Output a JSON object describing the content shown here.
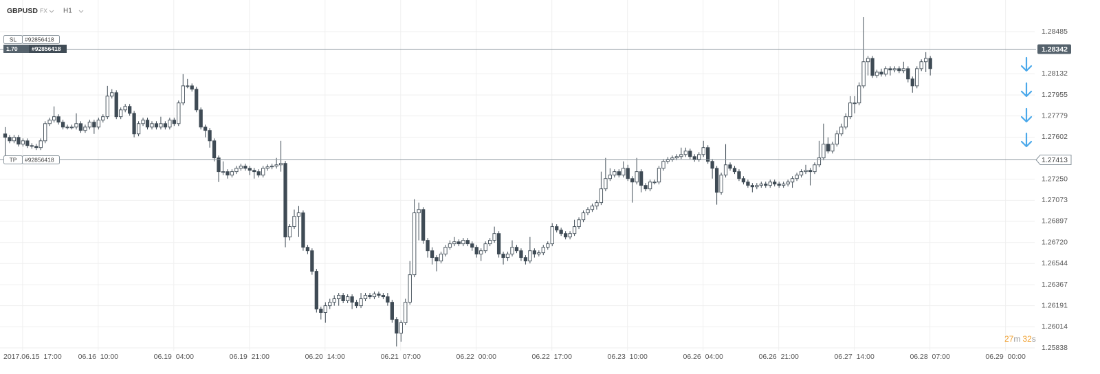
{
  "header": {
    "symbol": "GBPUSD",
    "market": "FX",
    "timeframe": "H1"
  },
  "position": {
    "size": "1.70",
    "id": "#92856418"
  },
  "timer": {
    "minutes": "27",
    "minutes_unit": "m",
    "seconds": "32",
    "seconds_unit": "s"
  },
  "chart_data": {
    "type": "candlestick",
    "up_color": "#ffffff",
    "down_color": "#3f4b55",
    "grid": true,
    "xlim": [
      -1.08,
      231.55
    ],
    "xticks": [
      {
        "value": 4,
        "label": "2017.06.15  17:00"
      },
      {
        "value": 21,
        "label": "06.16  10:00"
      },
      {
        "value": 38,
        "label": "06.19  04:00"
      },
      {
        "value": 55,
        "label": "06.19  21:00"
      },
      {
        "value": 72,
        "label": "06.20  14:00"
      },
      {
        "value": 89,
        "label": "06.21  07:00"
      },
      {
        "value": 106,
        "label": "06.22  00:00"
      },
      {
        "value": 123,
        "label": "06.22  17:00"
      },
      {
        "value": 140,
        "label": "06.23  10:00"
      },
      {
        "value": 157,
        "label": "06.26  04:00"
      },
      {
        "value": 174,
        "label": "06.26  21:00"
      },
      {
        "value": 191,
        "label": "06.27  14:00"
      },
      {
        "value": 208,
        "label": "06.28  07:00"
      },
      {
        "value": 225,
        "label": "06.29  00:00"
      }
    ],
    "ylim": [
      1.25815,
      1.28623
    ],
    "yticks": [
      1.28485,
      1.28132,
      1.27955,
      1.27779,
      1.27602,
      {
        "value": 1.2725,
        "label": "1.27250"
      },
      1.27073,
      1.26897,
      {
        "value": 1.2672,
        "label": "1.26720"
      },
      1.26544,
      1.26367,
      1.26191,
      1.26014,
      1.25838
    ],
    "levels": [
      {
        "label": "SL",
        "id": "#92856418",
        "value": 1.28342
      },
      {
        "label": "TP",
        "id": "#92856418",
        "value": 1.27413
      }
    ],
    "candles": [
      [
        1.27629,
        1.27686,
        1.27428,
        1.276
      ],
      [
        1.276,
        1.2762,
        1.27551,
        1.27571
      ],
      [
        1.27571,
        1.2762,
        1.27551,
        1.276
      ],
      [
        1.276,
        1.2762,
        1.27523,
        1.27543
      ],
      [
        1.27543,
        1.27591,
        1.27523,
        1.27571
      ],
      [
        1.27571,
        1.27591,
        1.27511,
        1.27531
      ],
      [
        1.27531,
        1.27551,
        1.27505,
        1.27525
      ],
      [
        1.27525,
        1.27545,
        1.27494,
        1.27514
      ],
      [
        1.27514,
        1.27591,
        1.27494,
        1.27571
      ],
      [
        1.27571,
        1.27735,
        1.27551,
        1.27715
      ],
      [
        1.27715,
        1.27764,
        1.27695,
        1.27744
      ],
      [
        1.27744,
        1.27859,
        1.27724,
        1.27773
      ],
      [
        1.27773,
        1.27793,
        1.27707,
        1.27727
      ],
      [
        1.27727,
        1.27747,
        1.27666,
        1.27686
      ],
      [
        1.27686,
        1.27706,
        1.27666,
        1.27686
      ],
      [
        1.27686,
        1.27706,
        1.27666,
        1.27686
      ],
      [
        1.27686,
        1.27801,
        1.27666,
        1.27715
      ],
      [
        1.27715,
        1.27735,
        1.27638,
        1.27658
      ],
      [
        1.27658,
        1.27706,
        1.27638,
        1.27686
      ],
      [
        1.27686,
        1.27747,
        1.27666,
        1.27727
      ],
      [
        1.27727,
        1.27747,
        1.27629,
        1.27686
      ],
      [
        1.27686,
        1.27764,
        1.27666,
        1.27744
      ],
      [
        1.27744,
        1.27793,
        1.27724,
        1.27773
      ],
      [
        1.27773,
        1.28031,
        1.27753,
        1.27945
      ],
      [
        1.27945,
        1.28003,
        1.27925,
        1.27974
      ],
      [
        1.27974,
        1.27994,
        1.27753,
        1.27773
      ],
      [
        1.27773,
        1.2785,
        1.27753,
        1.2783
      ],
      [
        1.2783,
        1.27879,
        1.2781,
        1.27859
      ],
      [
        1.27859,
        1.27879,
        1.27781,
        1.27801
      ],
      [
        1.27801,
        1.27821,
        1.276,
        1.27629
      ],
      [
        1.27629,
        1.27735,
        1.27609,
        1.27715
      ],
      [
        1.27715,
        1.27764,
        1.27695,
        1.27744
      ],
      [
        1.27744,
        1.27764,
        1.27666,
        1.27686
      ],
      [
        1.27686,
        1.27735,
        1.27666,
        1.27715
      ],
      [
        1.27715,
        1.27735,
        1.27666,
        1.27686
      ],
      [
        1.27686,
        1.27773,
        1.27666,
        1.27715
      ],
      [
        1.27715,
        1.27735,
        1.27666,
        1.27686
      ],
      [
        1.27686,
        1.27764,
        1.27666,
        1.27744
      ],
      [
        1.27744,
        1.27764,
        1.27695,
        1.27715
      ],
      [
        1.27715,
        1.27908,
        1.27695,
        1.27888
      ],
      [
        1.27888,
        1.28129,
        1.27868,
        1.28031
      ],
      [
        1.28031,
        1.28089,
        1.28011,
        1.28031
      ],
      [
        1.28031,
        1.28051,
        1.27983,
        1.28003
      ],
      [
        1.28003,
        1.28023,
        1.2781,
        1.2783
      ],
      [
        1.2783,
        1.2785,
        1.27666,
        1.27686
      ],
      [
        1.27686,
        1.27706,
        1.276,
        1.27658
      ],
      [
        1.27658,
        1.27678,
        1.27514,
        1.27571
      ],
      [
        1.27571,
        1.27591,
        1.27399,
        1.27428
      ],
      [
        1.27428,
        1.27448,
        1.27226,
        1.27313
      ],
      [
        1.27313,
        1.27399,
        1.27284,
        1.27313
      ],
      [
        1.27313,
        1.27333,
        1.27255,
        1.27284
      ],
      [
        1.27284,
        1.27333,
        1.27264,
        1.27313
      ],
      [
        1.27313,
        1.27361,
        1.27293,
        1.27341
      ],
      [
        1.27341,
        1.27379,
        1.27321,
        1.27359
      ],
      [
        1.27359,
        1.27379,
        1.27321,
        1.27341
      ],
      [
        1.27341,
        1.27361,
        1.27284,
        1.27324
      ],
      [
        1.27324,
        1.27344,
        1.27255,
        1.27313
      ],
      [
        1.27313,
        1.27333,
        1.27264,
        1.27284
      ],
      [
        1.27284,
        1.27361,
        1.27264,
        1.27341
      ],
      [
        1.27341,
        1.27373,
        1.27321,
        1.27353
      ],
      [
        1.27353,
        1.27379,
        1.27333,
        1.27359
      ],
      [
        1.27359,
        1.27428,
        1.27339,
        1.2737
      ],
      [
        1.2737,
        1.27571,
        1.27313,
        1.27382
      ],
      [
        1.27382,
        1.27402,
        1.2668,
        1.26766
      ],
      [
        1.26766,
        1.26873,
        1.26738,
        1.26853
      ],
      [
        1.26853,
        1.26996,
        1.26833,
        1.26939
      ],
      [
        1.26939,
        1.27025,
        1.26766,
        1.26968
      ],
      [
        1.26968,
        1.26988,
        1.26651,
        1.2668
      ],
      [
        1.2668,
        1.267,
        1.26623,
        1.26651
      ],
      [
        1.26651,
        1.26671,
        1.2645,
        1.26479
      ],
      [
        1.26479,
        1.26499,
        1.26134,
        1.26163
      ],
      [
        1.26163,
        1.26183,
        1.26076,
        1.26134
      ],
      [
        1.26134,
        1.2622,
        1.26048,
        1.26191
      ],
      [
        1.26191,
        1.26249,
        1.26163,
        1.2622
      ],
      [
        1.2622,
        1.26278,
        1.26191,
        1.26249
      ],
      [
        1.26249,
        1.26298,
        1.26191,
        1.26278
      ],
      [
        1.26278,
        1.26298,
        1.26212,
        1.26232
      ],
      [
        1.26232,
        1.26286,
        1.26212,
        1.26266
      ],
      [
        1.26266,
        1.26286,
        1.26163,
        1.2622
      ],
      [
        1.2622,
        1.2624,
        1.26171,
        1.26191
      ],
      [
        1.26191,
        1.26298,
        1.26171,
        1.26249
      ],
      [
        1.26249,
        1.26298,
        1.26229,
        1.26278
      ],
      [
        1.26278,
        1.26298,
        1.26246,
        1.26266
      ],
      [
        1.26266,
        1.26309,
        1.26246,
        1.26289
      ],
      [
        1.26289,
        1.26309,
        1.26258,
        1.26278
      ],
      [
        1.26278,
        1.26298,
        1.26246,
        1.26266
      ],
      [
        1.26266,
        1.26298,
        1.26191,
        1.2622
      ],
      [
        1.2622,
        1.2624,
        1.26048,
        1.26076
      ],
      [
        1.26076,
        1.26096,
        1.2585,
        1.25961
      ],
      [
        1.25961,
        1.26068,
        1.2589,
        1.26048
      ],
      [
        1.26048,
        1.26249,
        1.26028,
        1.2622
      ],
      [
        1.2622,
        1.26565,
        1.262,
        1.2645
      ],
      [
        1.2645,
        1.27082,
        1.2643,
        1.26968
      ],
      [
        1.26968,
        1.27054,
        1.26738,
        1.26996
      ],
      [
        1.26996,
        1.27016,
        1.26709,
        1.26738
      ],
      [
        1.26738,
        1.26758,
        1.26594,
        1.26651
      ],
      [
        1.26651,
        1.2668,
        1.26536,
        1.26594
      ],
      [
        1.26594,
        1.26614,
        1.26479,
        1.26565
      ],
      [
        1.26565,
        1.26643,
        1.26545,
        1.26623
      ],
      [
        1.26623,
        1.267,
        1.26603,
        1.2668
      ],
      [
        1.2668,
        1.26738,
        1.2666,
        1.26709
      ],
      [
        1.26709,
        1.26766,
        1.26689,
        1.26726
      ],
      [
        1.26726,
        1.26746,
        1.26689,
        1.26709
      ],
      [
        1.26709,
        1.26758,
        1.26689,
        1.26738
      ],
      [
        1.26738,
        1.26758,
        1.26689,
        1.26709
      ],
      [
        1.26709,
        1.26729,
        1.26651,
        1.2668
      ],
      [
        1.2668,
        1.267,
        1.26594,
        1.26623
      ],
      [
        1.26623,
        1.26671,
        1.26565,
        1.26651
      ],
      [
        1.26651,
        1.26729,
        1.26631,
        1.26709
      ],
      [
        1.26709,
        1.26758,
        1.26689,
        1.26738
      ],
      [
        1.26738,
        1.26853,
        1.26718,
        1.26795
      ],
      [
        1.26795,
        1.26815,
        1.26594,
        1.26623
      ],
      [
        1.26623,
        1.26643,
        1.26536,
        1.26594
      ],
      [
        1.26594,
        1.26643,
        1.26565,
        1.26623
      ],
      [
        1.26623,
        1.26738,
        1.26603,
        1.2668
      ],
      [
        1.2668,
        1.267,
        1.26631,
        1.26651
      ],
      [
        1.26651,
        1.26671,
        1.26565,
        1.26594
      ],
      [
        1.26594,
        1.26614,
        1.26536,
        1.26565
      ],
      [
        1.26565,
        1.26766,
        1.26545,
        1.26651
      ],
      [
        1.26651,
        1.26671,
        1.26594,
        1.26623
      ],
      [
        1.26623,
        1.26654,
        1.26603,
        1.26634
      ],
      [
        1.26634,
        1.267,
        1.26614,
        1.2668
      ],
      [
        1.2668,
        1.26729,
        1.2666,
        1.26709
      ],
      [
        1.26709,
        1.26882,
        1.26689,
        1.26853
      ],
      [
        1.26853,
        1.26873,
        1.26804,
        1.26824
      ],
      [
        1.26824,
        1.26844,
        1.26775,
        1.26795
      ],
      [
        1.26795,
        1.26815,
        1.26746,
        1.26766
      ],
      [
        1.26766,
        1.26815,
        1.26746,
        1.26795
      ],
      [
        1.26795,
        1.2691,
        1.26775,
        1.26853
      ],
      [
        1.26853,
        1.2693,
        1.26833,
        1.2691
      ],
      [
        1.2691,
        1.26988,
        1.2689,
        1.26968
      ],
      [
        1.26968,
        1.27016,
        1.26948,
        1.26996
      ],
      [
        1.26996,
        1.27045,
        1.26976,
        1.27025
      ],
      [
        1.27025,
        1.27074,
        1.26996,
        1.27054
      ],
      [
        1.27054,
        1.27313,
        1.27034,
        1.27169
      ],
      [
        1.27169,
        1.27428,
        1.27149,
        1.27255
      ],
      [
        1.27255,
        1.27341,
        1.27235,
        1.27284
      ],
      [
        1.27284,
        1.27333,
        1.27264,
        1.27313
      ],
      [
        1.27313,
        1.27333,
        1.27264,
        1.27284
      ],
      [
        1.27284,
        1.27399,
        1.27264,
        1.27341
      ],
      [
        1.27341,
        1.2737,
        1.27235,
        1.27255
      ],
      [
        1.27255,
        1.27275,
        1.27054,
        1.27226
      ],
      [
        1.27226,
        1.27428,
        1.27206,
        1.27313
      ],
      [
        1.27313,
        1.27333,
        1.2714,
        1.27198
      ],
      [
        1.27198,
        1.27218,
        1.27149,
        1.27169
      ],
      [
        1.27169,
        1.27246,
        1.27149,
        1.27226
      ],
      [
        1.27226,
        1.27246,
        1.27206,
        1.27226
      ],
      [
        1.27226,
        1.27361,
        1.27206,
        1.27341
      ],
      [
        1.27341,
        1.27419,
        1.27321,
        1.27399
      ],
      [
        1.27399,
        1.27436,
        1.27379,
        1.27416
      ],
      [
        1.27416,
        1.27448,
        1.27396,
        1.27428
      ],
      [
        1.27428,
        1.27459,
        1.27408,
        1.27439
      ],
      [
        1.27439,
        1.27514,
        1.27419,
        1.27456
      ],
      [
        1.27456,
        1.27514,
        1.27436,
        1.27485
      ],
      [
        1.27485,
        1.27505,
        1.27419,
        1.27439
      ],
      [
        1.27439,
        1.27459,
        1.27396,
        1.27416
      ],
      [
        1.27416,
        1.27476,
        1.27396,
        1.27456
      ],
      [
        1.27456,
        1.27571,
        1.27436,
        1.27514
      ],
      [
        1.27514,
        1.27534,
        1.27379,
        1.27399
      ],
      [
        1.27399,
        1.27419,
        1.27255,
        1.27341
      ],
      [
        1.27341,
        1.27361,
        1.27037,
        1.2714
      ],
      [
        1.2714,
        1.27304,
        1.2712,
        1.27284
      ],
      [
        1.27284,
        1.27543,
        1.27264,
        1.2737
      ],
      [
        1.2737,
        1.2739,
        1.27321,
        1.27341
      ],
      [
        1.27341,
        1.27361,
        1.27293,
        1.27313
      ],
      [
        1.27313,
        1.27333,
        1.27235,
        1.27255
      ],
      [
        1.27255,
        1.27275,
        1.27206,
        1.27226
      ],
      [
        1.27226,
        1.27246,
        1.27178,
        1.27198
      ],
      [
        1.27198,
        1.27218,
        1.2714,
        1.27186
      ],
      [
        1.27186,
        1.27218,
        1.27166,
        1.27198
      ],
      [
        1.27198,
        1.27229,
        1.27178,
        1.27209
      ],
      [
        1.27209,
        1.27229,
        1.27178,
        1.27198
      ],
      [
        1.27198,
        1.27246,
        1.27178,
        1.27226
      ],
      [
        1.27226,
        1.27246,
        1.27189,
        1.27209
      ],
      [
        1.27209,
        1.27229,
        1.27178,
        1.27198
      ],
      [
        1.27198,
        1.27229,
        1.27178,
        1.27209
      ],
      [
        1.27209,
        1.27246,
        1.27189,
        1.27226
      ],
      [
        1.27226,
        1.27275,
        1.27178,
        1.27255
      ],
      [
        1.27255,
        1.27304,
        1.27235,
        1.27284
      ],
      [
        1.27284,
        1.27333,
        1.27264,
        1.27313
      ],
      [
        1.27313,
        1.2737,
        1.27293,
        1.27324
      ],
      [
        1.27324,
        1.27344,
        1.27198,
        1.27313
      ],
      [
        1.27313,
        1.2739,
        1.27293,
        1.2737
      ],
      [
        1.2737,
        1.27571,
        1.2735,
        1.27428
      ],
      [
        1.27428,
        1.27715,
        1.27408,
        1.27543
      ],
      [
        1.27543,
        1.276,
        1.27465,
        1.27485
      ],
      [
        1.27485,
        1.27563,
        1.27465,
        1.27543
      ],
      [
        1.27543,
        1.27658,
        1.27523,
        1.27629
      ],
      [
        1.27629,
        1.27715,
        1.27609,
        1.27686
      ],
      [
        1.27686,
        1.27801,
        1.27666,
        1.27773
      ],
      [
        1.27773,
        1.27945,
        1.27753,
        1.27888
      ],
      [
        1.27888,
        1.27945,
        1.27801,
        1.27888
      ],
      [
        1.27888,
        1.2806,
        1.27868,
        1.28031
      ],
      [
        1.28031,
        1.28606,
        1.28011,
        1.28233
      ],
      [
        1.28233,
        1.28281,
        1.28118,
        1.28261
      ],
      [
        1.28261,
        1.28281,
        1.28098,
        1.28118
      ],
      [
        1.28118,
        1.28166,
        1.28098,
        1.28146
      ],
      [
        1.28146,
        1.28175,
        1.28109,
        1.28129
      ],
      [
        1.28129,
        1.28195,
        1.28109,
        1.28175
      ],
      [
        1.28175,
        1.28195,
        1.28118,
        1.28164
      ],
      [
        1.28164,
        1.28195,
        1.28144,
        1.28175
      ],
      [
        1.28175,
        1.28195,
        1.28138,
        1.28158
      ],
      [
        1.28158,
        1.28233,
        1.28138,
        1.28175
      ],
      [
        1.28175,
        1.28195,
        1.2806,
        1.28089
      ],
      [
        1.28089,
        1.28109,
        1.27974,
        1.28031
      ],
      [
        1.28031,
        1.28195,
        1.28011,
        1.28175
      ],
      [
        1.28175,
        1.28253,
        1.28155,
        1.28233
      ],
      [
        1.28233,
        1.28313,
        1.28146,
        1.28261
      ],
      [
        1.28261,
        1.28281,
        1.28118,
        1.28175
      ]
    ]
  }
}
